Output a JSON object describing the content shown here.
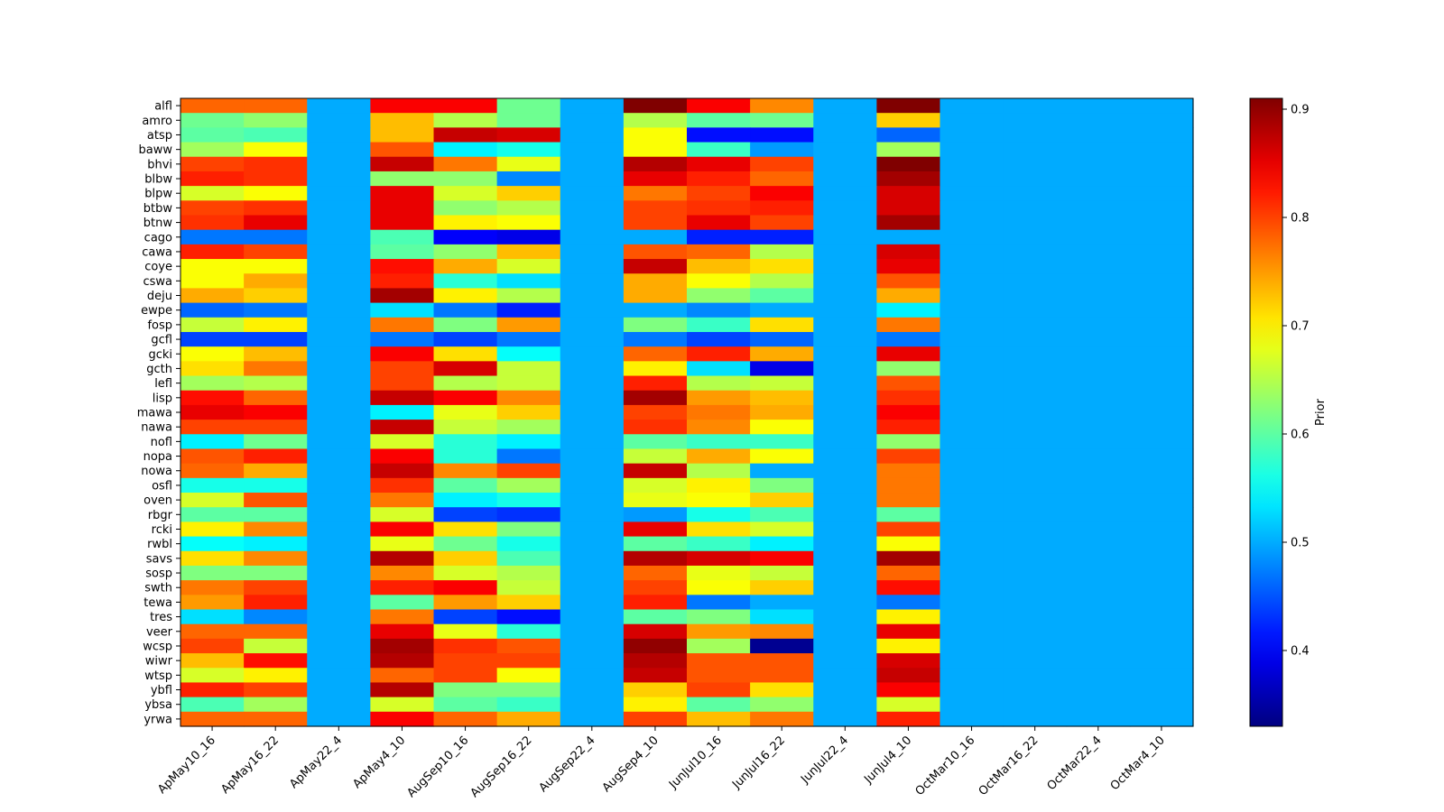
{
  "chart_data": {
    "type": "heatmap",
    "title": "",
    "xlabel": "",
    "ylabel": "",
    "colorbar_label": "Prior",
    "colormap": "jet",
    "vmin": 0.33,
    "vmax": 0.91,
    "colorbar_ticks": [
      0.4,
      0.5,
      0.6,
      0.7,
      0.8,
      0.9
    ],
    "colorbar_tick_labels": [
      "0.4",
      "0.5",
      "0.6",
      "0.7",
      "0.8",
      "0.9"
    ],
    "x_categories": [
      "ApMay10_16",
      "ApMay16_22",
      "ApMay22_4",
      "ApMay4_10",
      "AugSep10_16",
      "AugSep16_22",
      "AugSep22_4",
      "AugSep4_10",
      "JunJul10_16",
      "JunJul16_22",
      "JunJul22_4",
      "JunJul4_10",
      "OctMar10_16",
      "OctMar16_22",
      "OctMar22_4",
      "OctMar4_10"
    ],
    "y_categories": [
      "alfl",
      "amro",
      "atsp",
      "baww",
      "bhvi",
      "blbw",
      "blpw",
      "btbw",
      "btnw",
      "cago",
      "cawa",
      "coye",
      "cswa",
      "deju",
      "ewpe",
      "fosp",
      "gcfl",
      "gcki",
      "gcth",
      "lefl",
      "lisp",
      "mawa",
      "nawa",
      "nofl",
      "nopa",
      "nowa",
      "osfl",
      "oven",
      "rbgr",
      "rcki",
      "rwbl",
      "savs",
      "sosp",
      "swth",
      "tewa",
      "tres",
      "veer",
      "wcsp",
      "wiwr",
      "wtsp",
      "ybfl",
      "ybsa",
      "yrwa"
    ],
    "values": [
      [
        0.78,
        0.78,
        0.5,
        0.84,
        0.84,
        0.61,
        0.5,
        0.91,
        0.84,
        0.76,
        0.5,
        0.91,
        0.5,
        0.5,
        0.5,
        0.5
      ],
      [
        0.61,
        0.63,
        0.5,
        0.73,
        0.65,
        0.61,
        0.5,
        0.65,
        0.6,
        0.61,
        0.5,
        0.72,
        0.5,
        0.5,
        0.5,
        0.5
      ],
      [
        0.6,
        0.59,
        0.5,
        0.73,
        0.87,
        0.86,
        0.5,
        0.69,
        0.41,
        0.41,
        0.5,
        0.46,
        0.5,
        0.5,
        0.5,
        0.5
      ],
      [
        0.64,
        0.69,
        0.5,
        0.79,
        0.54,
        0.56,
        0.5,
        0.69,
        0.58,
        0.49,
        0.5,
        0.64,
        0.5,
        0.5,
        0.5,
        0.5
      ],
      [
        0.8,
        0.81,
        0.5,
        0.87,
        0.77,
        0.68,
        0.5,
        0.88,
        0.85,
        0.8,
        0.5,
        0.91,
        0.5,
        0.5,
        0.5,
        0.5
      ],
      [
        0.82,
        0.81,
        0.5,
        0.63,
        0.63,
        0.48,
        0.5,
        0.85,
        0.82,
        0.78,
        0.5,
        0.89,
        0.5,
        0.5,
        0.5,
        0.5
      ],
      [
        0.67,
        0.69,
        0.5,
        0.85,
        0.67,
        0.72,
        0.5,
        0.77,
        0.8,
        0.84,
        0.5,
        0.86,
        0.5,
        0.5,
        0.5,
        0.5
      ],
      [
        0.8,
        0.81,
        0.5,
        0.85,
        0.63,
        0.65,
        0.5,
        0.8,
        0.81,
        0.82,
        0.5,
        0.86,
        0.5,
        0.5,
        0.5,
        0.5
      ],
      [
        0.81,
        0.85,
        0.5,
        0.85,
        0.7,
        0.69,
        0.5,
        0.8,
        0.85,
        0.8,
        0.5,
        0.89,
        0.5,
        0.5,
        0.5,
        0.5
      ],
      [
        0.47,
        0.47,
        0.5,
        0.59,
        0.4,
        0.39,
        0.5,
        0.5,
        0.42,
        0.42,
        0.5,
        0.5,
        0.5,
        0.5,
        0.5,
        0.5
      ],
      [
        0.82,
        0.8,
        0.5,
        0.6,
        0.63,
        0.73,
        0.5,
        0.79,
        0.78,
        0.65,
        0.5,
        0.86,
        0.5,
        0.5,
        0.5,
        0.5
      ],
      [
        0.69,
        0.69,
        0.5,
        0.83,
        0.74,
        0.67,
        0.5,
        0.87,
        0.73,
        0.71,
        0.5,
        0.85,
        0.5,
        0.5,
        0.5,
        0.5
      ],
      [
        0.69,
        0.74,
        0.5,
        0.82,
        0.57,
        0.53,
        0.5,
        0.74,
        0.69,
        0.65,
        0.5,
        0.79,
        0.5,
        0.5,
        0.5,
        0.5
      ],
      [
        0.74,
        0.72,
        0.5,
        0.89,
        0.7,
        0.65,
        0.5,
        0.74,
        0.63,
        0.6,
        0.5,
        0.74,
        0.5,
        0.5,
        0.5,
        0.5
      ],
      [
        0.46,
        0.47,
        0.5,
        0.53,
        0.47,
        0.42,
        0.5,
        0.5,
        0.48,
        0.5,
        0.5,
        0.54,
        0.5,
        0.5,
        0.5,
        0.5
      ],
      [
        0.66,
        0.7,
        0.5,
        0.77,
        0.62,
        0.75,
        0.5,
        0.62,
        0.58,
        0.71,
        0.5,
        0.77,
        0.5,
        0.5,
        0.5,
        0.5
      ],
      [
        0.44,
        0.44,
        0.5,
        0.47,
        0.44,
        0.47,
        0.5,
        0.47,
        0.44,
        0.46,
        0.5,
        0.47,
        0.5,
        0.5,
        0.5,
        0.5
      ],
      [
        0.69,
        0.73,
        0.5,
        0.84,
        0.71,
        0.55,
        0.5,
        0.78,
        0.82,
        0.74,
        0.5,
        0.85,
        0.5,
        0.5,
        0.5,
        0.5
      ],
      [
        0.71,
        0.77,
        0.5,
        0.8,
        0.86,
        0.66,
        0.5,
        0.7,
        0.53,
        0.39,
        0.5,
        0.63,
        0.5,
        0.5,
        0.5,
        0.5
      ],
      [
        0.64,
        0.65,
        0.5,
        0.8,
        0.65,
        0.66,
        0.5,
        0.82,
        0.65,
        0.66,
        0.5,
        0.79,
        0.5,
        0.5,
        0.5,
        0.5
      ],
      [
        0.83,
        0.78,
        0.5,
        0.87,
        0.84,
        0.76,
        0.5,
        0.89,
        0.75,
        0.73,
        0.5,
        0.81,
        0.5,
        0.5,
        0.5,
        0.5
      ],
      [
        0.85,
        0.84,
        0.5,
        0.54,
        0.68,
        0.72,
        0.5,
        0.8,
        0.77,
        0.74,
        0.5,
        0.84,
        0.5,
        0.5,
        0.5,
        0.5
      ],
      [
        0.8,
        0.8,
        0.5,
        0.87,
        0.66,
        0.64,
        0.5,
        0.81,
        0.76,
        0.69,
        0.5,
        0.82,
        0.5,
        0.5,
        0.5,
        0.5
      ],
      [
        0.54,
        0.61,
        0.5,
        0.67,
        0.57,
        0.54,
        0.5,
        0.6,
        0.58,
        0.58,
        0.5,
        0.63,
        0.5,
        0.5,
        0.5,
        0.5
      ],
      [
        0.79,
        0.82,
        0.5,
        0.84,
        0.57,
        0.47,
        0.5,
        0.66,
        0.74,
        0.69,
        0.5,
        0.8,
        0.5,
        0.5,
        0.5,
        0.5
      ],
      [
        0.78,
        0.74,
        0.5,
        0.87,
        0.76,
        0.8,
        0.5,
        0.87,
        0.65,
        0.5,
        0.5,
        0.77,
        0.5,
        0.5,
        0.5,
        0.5
      ],
      [
        0.56,
        0.56,
        0.5,
        0.81,
        0.6,
        0.64,
        0.5,
        0.67,
        0.7,
        0.62,
        0.5,
        0.77,
        0.5,
        0.5,
        0.5,
        0.5
      ],
      [
        0.67,
        0.79,
        0.5,
        0.77,
        0.54,
        0.56,
        0.5,
        0.68,
        0.69,
        0.72,
        0.5,
        0.77,
        0.5,
        0.5,
        0.5,
        0.5
      ],
      [
        0.6,
        0.6,
        0.5,
        0.67,
        0.44,
        0.43,
        0.5,
        0.49,
        0.56,
        0.59,
        0.5,
        0.6,
        0.5,
        0.5,
        0.5,
        0.5
      ],
      [
        0.7,
        0.76,
        0.5,
        0.84,
        0.71,
        0.62,
        0.5,
        0.85,
        0.71,
        0.67,
        0.5,
        0.8,
        0.5,
        0.5,
        0.5,
        0.5
      ],
      [
        0.55,
        0.54,
        0.5,
        0.68,
        0.61,
        0.56,
        0.5,
        0.6,
        0.58,
        0.54,
        0.5,
        0.69,
        0.5,
        0.5,
        0.5,
        0.5
      ],
      [
        0.71,
        0.76,
        0.5,
        0.88,
        0.72,
        0.59,
        0.5,
        0.88,
        0.86,
        0.84,
        0.5,
        0.89,
        0.5,
        0.5,
        0.5,
        0.5
      ],
      [
        0.62,
        0.62,
        0.5,
        0.76,
        0.67,
        0.65,
        0.5,
        0.78,
        0.68,
        0.66,
        0.5,
        0.78,
        0.5,
        0.5,
        0.5,
        0.5
      ],
      [
        0.77,
        0.8,
        0.5,
        0.82,
        0.84,
        0.66,
        0.5,
        0.8,
        0.69,
        0.72,
        0.5,
        0.83,
        0.5,
        0.5,
        0.5,
        0.5
      ],
      [
        0.75,
        0.82,
        0.5,
        0.6,
        0.75,
        0.72,
        0.5,
        0.82,
        0.47,
        0.5,
        0.5,
        0.47,
        0.5,
        0.5,
        0.5,
        0.5
      ],
      [
        0.53,
        0.48,
        0.5,
        0.77,
        0.44,
        0.41,
        0.5,
        0.6,
        0.62,
        0.53,
        0.5,
        0.7,
        0.5,
        0.5,
        0.5,
        0.5
      ],
      [
        0.78,
        0.78,
        0.5,
        0.85,
        0.68,
        0.57,
        0.5,
        0.86,
        0.75,
        0.76,
        0.5,
        0.85,
        0.5,
        0.5,
        0.5,
        0.5
      ],
      [
        0.8,
        0.66,
        0.5,
        0.89,
        0.81,
        0.79,
        0.5,
        0.9,
        0.64,
        0.34,
        0.5,
        0.7,
        0.5,
        0.5,
        0.5,
        0.5
      ],
      [
        0.73,
        0.83,
        0.5,
        0.88,
        0.8,
        0.8,
        0.5,
        0.88,
        0.79,
        0.79,
        0.5,
        0.86,
        0.5,
        0.5,
        0.5,
        0.5
      ],
      [
        0.67,
        0.7,
        0.5,
        0.78,
        0.8,
        0.69,
        0.5,
        0.87,
        0.79,
        0.79,
        0.5,
        0.87,
        0.5,
        0.5,
        0.5,
        0.5
      ],
      [
        0.82,
        0.8,
        0.5,
        0.88,
        0.62,
        0.62,
        0.5,
        0.72,
        0.8,
        0.71,
        0.5,
        0.84,
        0.5,
        0.5,
        0.5,
        0.5
      ],
      [
        0.59,
        0.64,
        0.5,
        0.67,
        0.6,
        0.58,
        0.5,
        0.7,
        0.6,
        0.63,
        0.5,
        0.67,
        0.5,
        0.5,
        0.5,
        0.5
      ],
      [
        0.78,
        0.78,
        0.5,
        0.84,
        0.78,
        0.74,
        0.5,
        0.8,
        0.73,
        0.77,
        0.5,
        0.82,
        0.5,
        0.5,
        0.5,
        0.5
      ]
    ],
    "grid": false,
    "legend": "colorbar-right"
  }
}
